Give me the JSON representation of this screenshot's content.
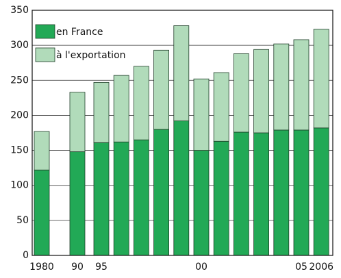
{
  "chart_data": {
    "type": "bar",
    "stacked": true,
    "categories": [
      "1980",
      "90",
      "95",
      null,
      null,
      null,
      null,
      "00",
      null,
      null,
      null,
      null,
      "05",
      "2006"
    ],
    "series": [
      {
        "name": "en France",
        "color": "#22a956",
        "values": [
          122,
          148,
          161,
          162,
          165,
          180,
          192,
          150,
          163,
          176,
          175,
          179,
          179,
          182
        ]
      },
      {
        "name": "à l'exportation",
        "color": "#b1dbba",
        "values": [
          55,
          85,
          86,
          95,
          105,
          113,
          136,
          102,
          98,
          112,
          119,
          123,
          129,
          141
        ]
      }
    ],
    "ylim": [
      0,
      350
    ],
    "yticks": [
      0,
      50,
      100,
      150,
      200,
      250,
      300,
      350
    ],
    "grid": true,
    "legend": "top-left"
  }
}
